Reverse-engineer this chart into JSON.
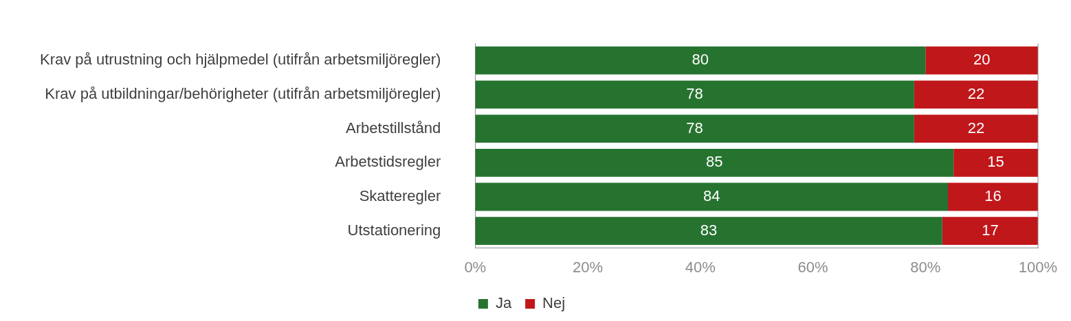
{
  "chart_data": {
    "type": "bar",
    "orientation": "horizontal",
    "stacked": true,
    "categories": [
      "Krav på utrustning och hjälpmedel (utifrån arbetsmiljöregler)",
      "Krav på utbildningar/behörigheter (utifrån arbetsmiljöregler)",
      "Arbetstillstånd",
      "Arbetstidsregler",
      "Skatteregler",
      "Utstationering"
    ],
    "series": [
      {
        "name": "Ja",
        "color": "#267330",
        "values": [
          80,
          78,
          78,
          85,
          84,
          83
        ]
      },
      {
        "name": "Nej",
        "color": "#c0171a",
        "values": [
          20,
          22,
          22,
          15,
          16,
          17
        ]
      }
    ],
    "xlim": [
      0,
      100
    ],
    "xticks": [
      {
        "value": 0,
        "label": "0%"
      },
      {
        "value": 20,
        "label": "20%"
      },
      {
        "value": 40,
        "label": "40%"
      },
      {
        "value": 60,
        "label": "60%"
      },
      {
        "value": 80,
        "label": "80%"
      },
      {
        "value": 100,
        "label": "100%"
      }
    ],
    "data_labels": true,
    "grid": false,
    "legend": "bottom"
  }
}
